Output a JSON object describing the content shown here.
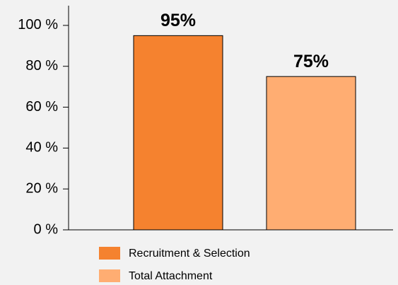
{
  "chart_data": {
    "type": "bar",
    "series": [
      {
        "name": "Recruitment & Selection",
        "color": "#f5822f",
        "values": [
          95
        ],
        "value_labels": [
          "95%"
        ]
      },
      {
        "name": "Total Attachment",
        "color": "#ffad72",
        "values": [
          75
        ],
        "value_labels": [
          "75%"
        ]
      }
    ],
    "ylim": [
      0,
      110
    ],
    "yticks": [
      {
        "value": 0,
        "label": "0 %"
      },
      {
        "value": 20,
        "label": "20 %"
      },
      {
        "value": 40,
        "label": "40 %"
      },
      {
        "value": 60,
        "label": "60 %"
      },
      {
        "value": 80,
        "label": "80 %"
      },
      {
        "value": 100,
        "label": "100 %"
      }
    ]
  }
}
